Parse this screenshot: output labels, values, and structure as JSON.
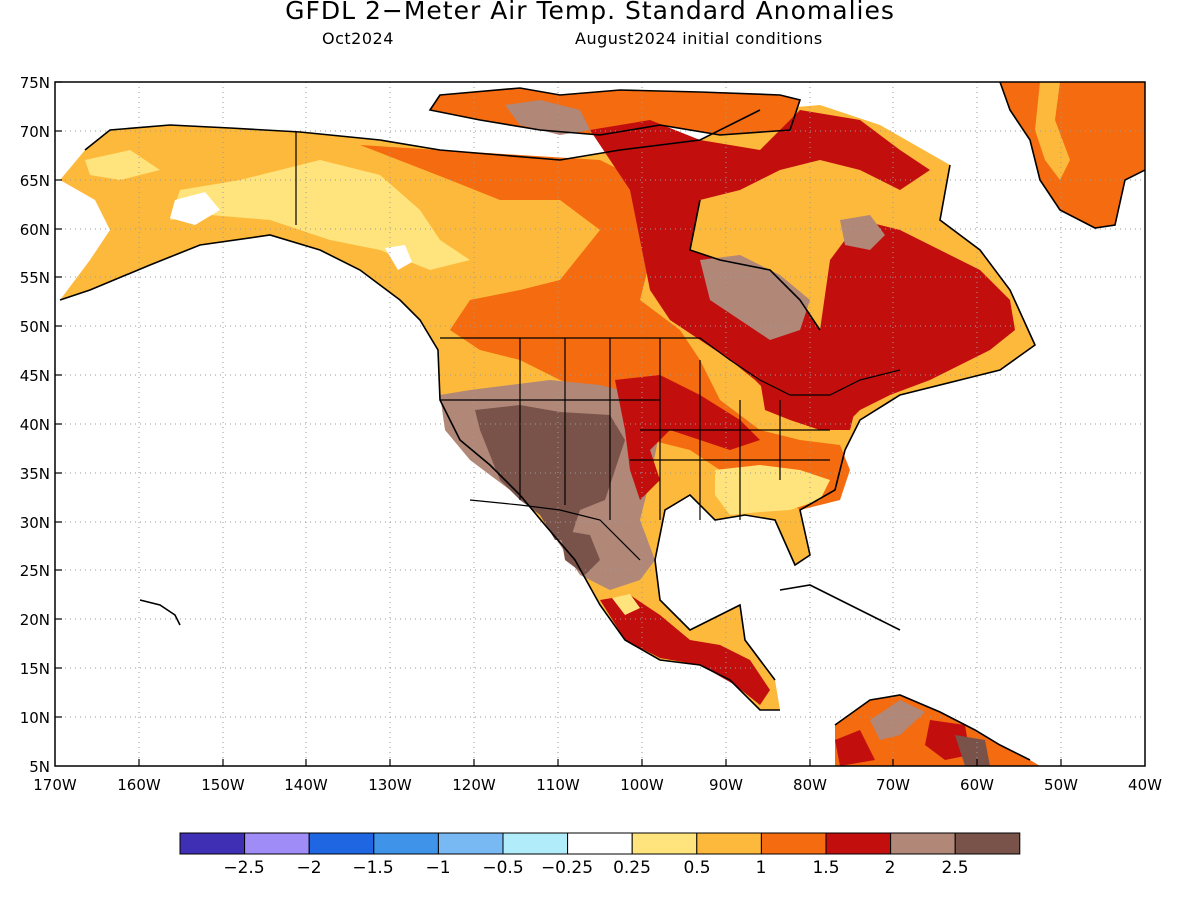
{
  "header": {
    "title": "GFDL 2−Meter Air Temp. Standard Anomalies",
    "valid_month": "Oct2024",
    "init": "August2024 initial conditions"
  },
  "axes": {
    "lat_labels": [
      "75N",
      "70N",
      "65N",
      "60N",
      "55N",
      "50N",
      "45N",
      "40N",
      "35N",
      "30N",
      "25N",
      "20N",
      "15N",
      "10N",
      "5N"
    ],
    "lon_labels": [
      "170W",
      "160W",
      "150W",
      "140W",
      "130W",
      "120W",
      "110W",
      "100W",
      "90W",
      "80W",
      "70W",
      "60W",
      "50W",
      "40W"
    ],
    "grid": "dotted"
  },
  "colorbar": {
    "colors": [
      "#3f2fb4",
      "#a08cf7",
      "#1f66e3",
      "#3f94ea",
      "#78b8f3",
      "#b0ecfa",
      "#ffffff",
      "#ffe47d",
      "#fdb93b",
      "#f46b10",
      "#c30e0e",
      "#b18778",
      "#79534a"
    ],
    "labels": [
      "−2.5",
      "−2",
      "−1.5",
      "−1",
      "−0.5",
      "−0.25",
      "0.25",
      "0.5",
      "1",
      "1.5",
      "2",
      "2.5"
    ]
  },
  "palette": {
    "ocean": "#ffffff",
    "coast": "#000000"
  }
}
